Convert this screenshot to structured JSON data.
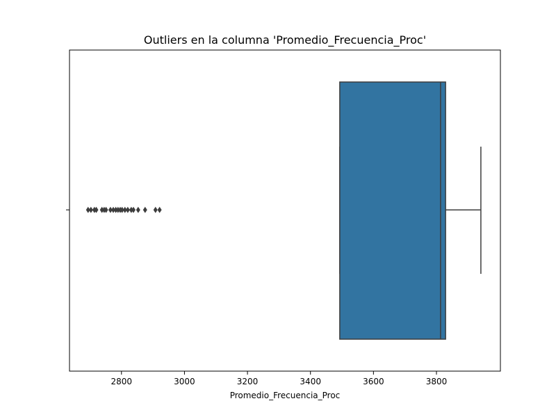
{
  "chart_data": {
    "type": "box",
    "title": "Outliers en la columna 'Promedio_Frecuencia_Proc'",
    "xlabel": "Promedio_Frecuencia_Proc",
    "color": "#3274a1",
    "whislo": 3493,
    "q1": 3493,
    "med": 3813,
    "q3": 3829,
    "whishi": 3941,
    "fliers": [
      2694,
      2703,
      2714,
      2720,
      2738,
      2745,
      2751,
      2765,
      2774,
      2782,
      2789,
      2796,
      2802,
      2811,
      2820,
      2831,
      2838,
      2853,
      2875,
      2908,
      2921
    ],
    "xlim": [
      2635,
      4003
    ],
    "xticks": [
      2800,
      3000,
      3200,
      3400,
      3600,
      3800
    ]
  }
}
